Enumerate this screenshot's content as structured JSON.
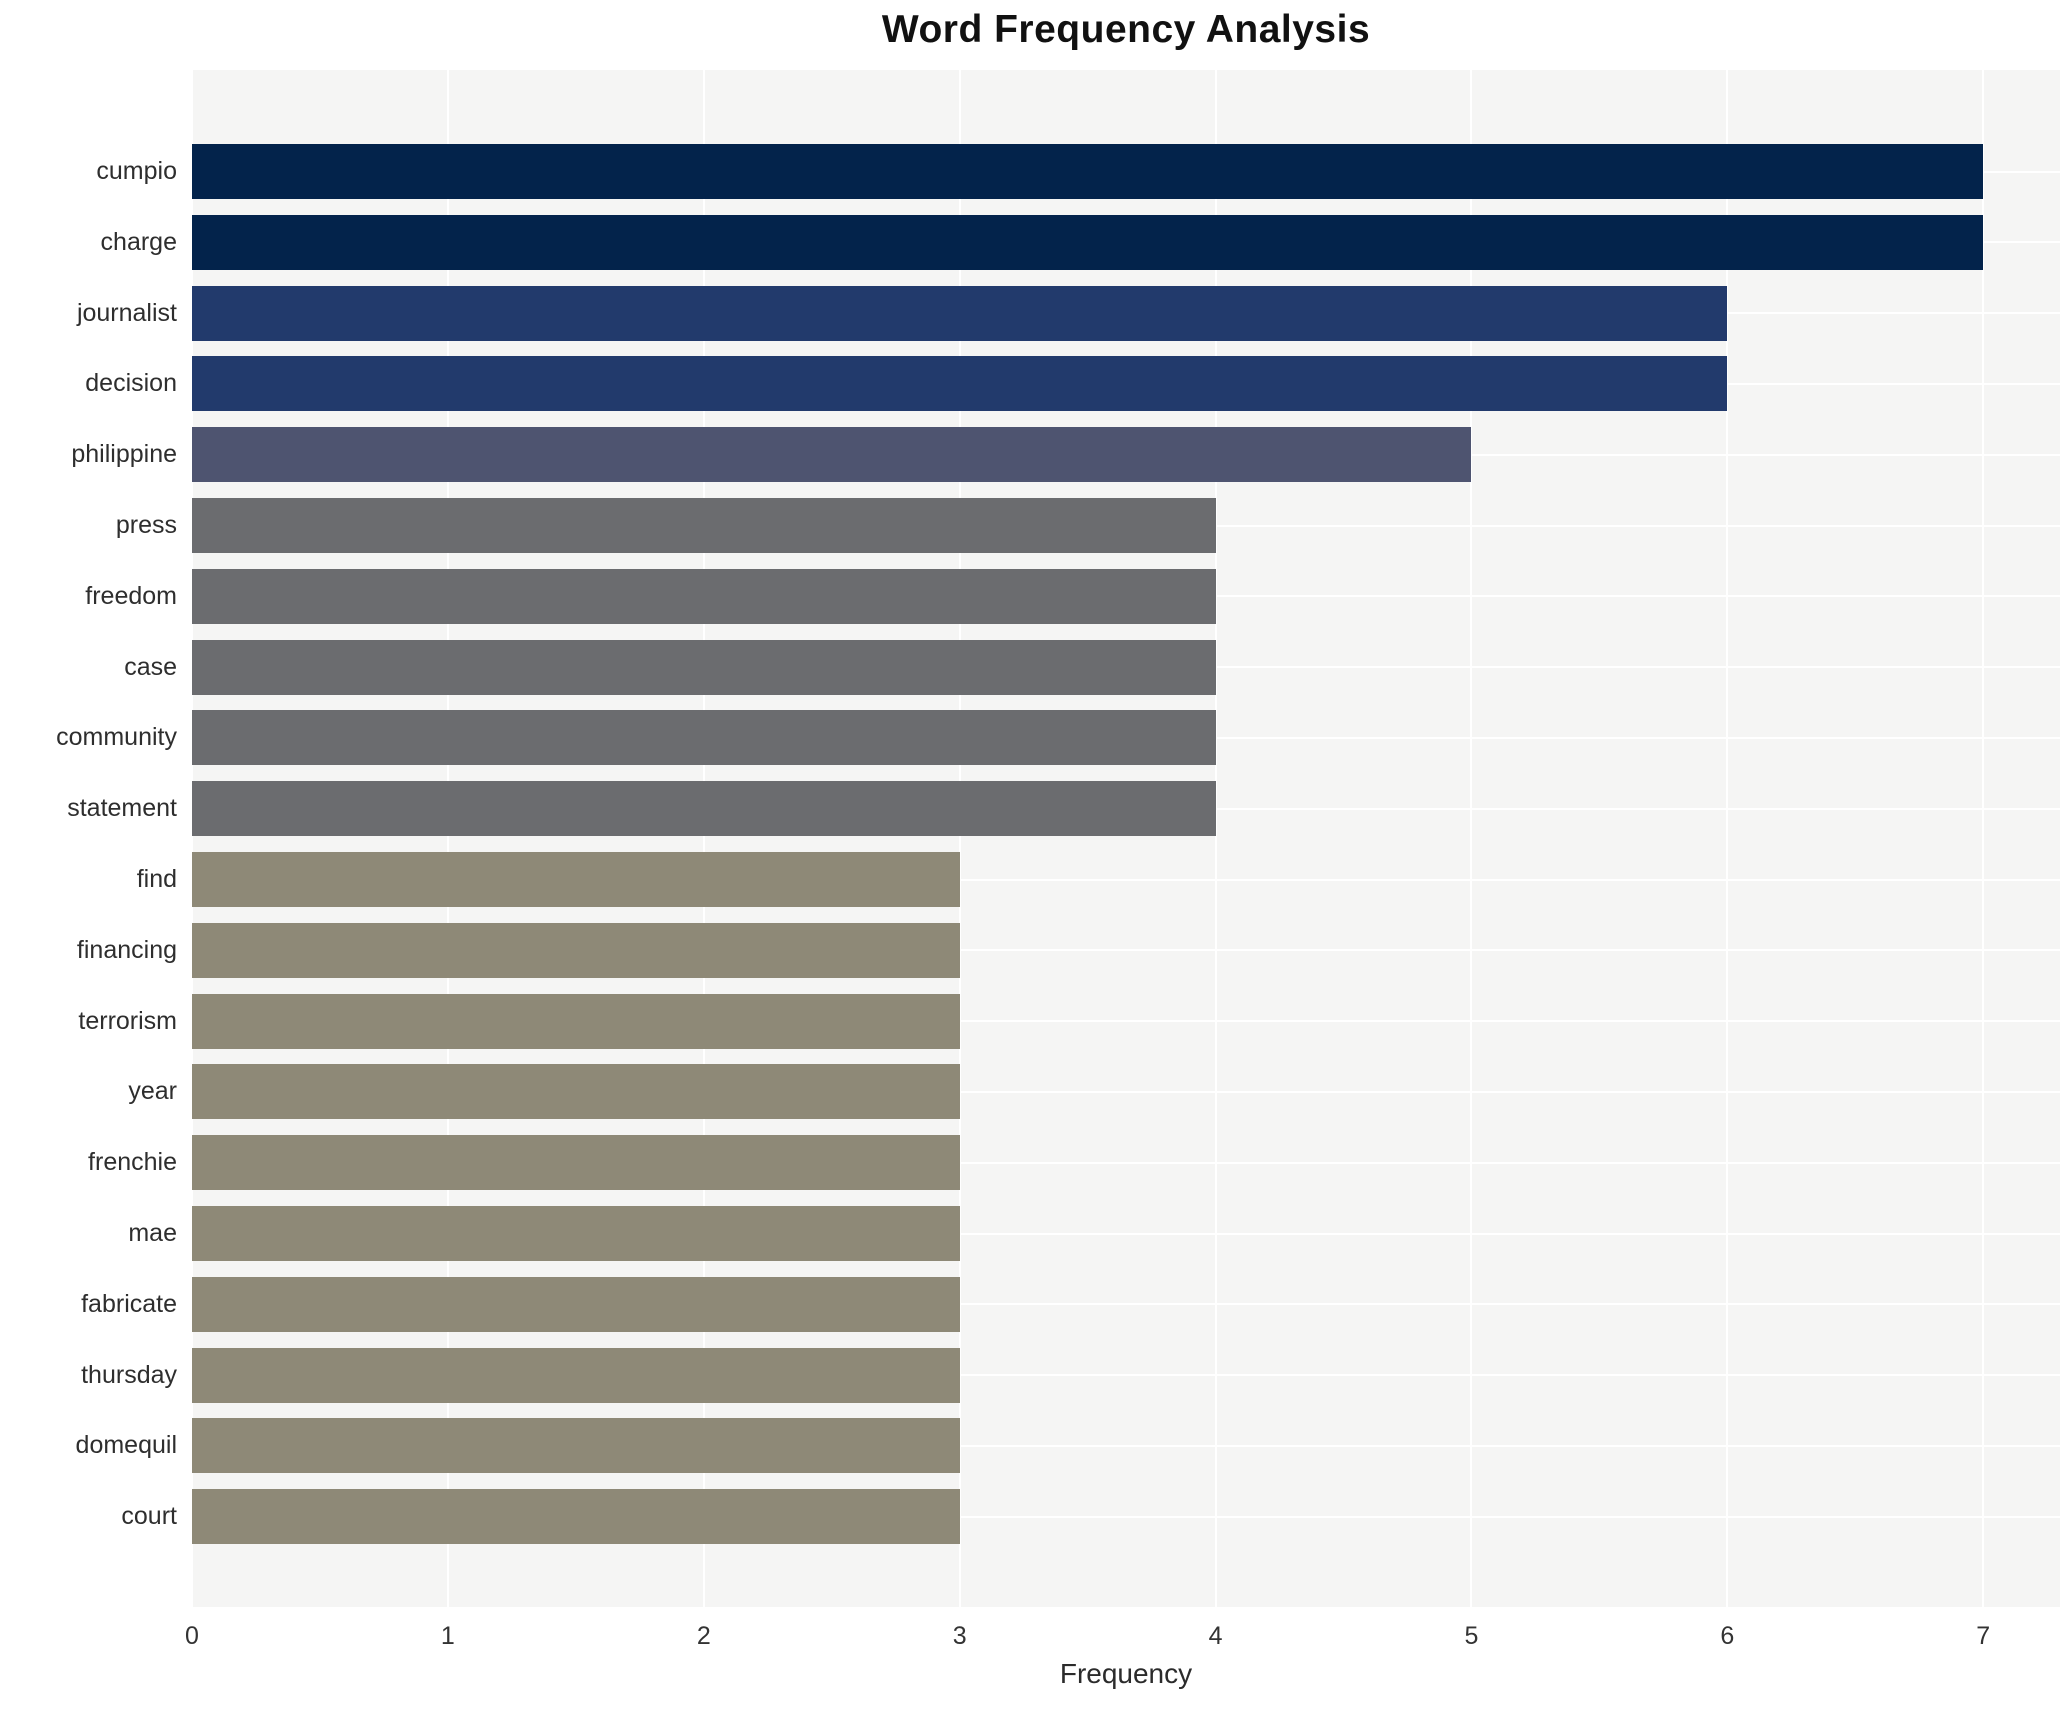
{
  "chart_data": {
    "type": "bar",
    "orientation": "horizontal",
    "title": "Word Frequency Analysis",
    "xlabel": "Frequency",
    "ylabel": "",
    "categories": [
      "cumpio",
      "charge",
      "journalist",
      "decision",
      "philippine",
      "press",
      "freedom",
      "case",
      "community",
      "statement",
      "find",
      "financing",
      "terrorism",
      "year",
      "frenchie",
      "mae",
      "fabricate",
      "thursday",
      "domequil",
      "court"
    ],
    "values": [
      7,
      7,
      6,
      6,
      5,
      4,
      4,
      4,
      4,
      4,
      3,
      3,
      3,
      3,
      3,
      3,
      3,
      3,
      3,
      3
    ],
    "xticks": [
      "0",
      "1",
      "2",
      "3",
      "4",
      "5",
      "6",
      "7"
    ],
    "xlim": [
      0,
      7.3
    ],
    "grid": "white gridlines on light-gray plot background, drawn below bars",
    "legend": "none",
    "colors_by_value": {
      "7": "#03234b",
      "6": "#223a6c",
      "5": "#4e5470",
      "4": "#6b6c6f",
      "3": "#8e8977"
    },
    "plot_background": "#f5f5f4",
    "figure_background": "#ffffff",
    "gridline_color": "#ffffff",
    "title_color": "#111111",
    "label_color": "#2e2e2e"
  }
}
